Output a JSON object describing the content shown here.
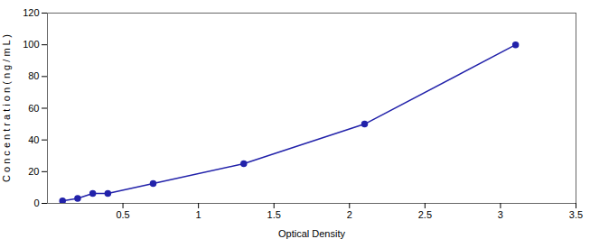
{
  "chart_data": {
    "type": "line",
    "x": [
      0.1,
      0.2,
      0.3,
      0.4,
      0.7,
      1.3,
      2.1,
      3.1
    ],
    "values": [
      1.56,
      3.13,
      6.25,
      6.25,
      12.5,
      25.0,
      50.0,
      100.0
    ],
    "xlabel": "Optical Density",
    "ylabel": "C o n c e n t r a t i o n ( n g / m L )",
    "xlim": [
      0,
      3.5
    ],
    "ylim": [
      0,
      120
    ],
    "xticks": [
      0.5,
      1,
      1.5,
      2,
      2.5,
      3,
      3.5
    ],
    "yticks": [
      0,
      20,
      40,
      60,
      80,
      100,
      120
    ],
    "color": "#2222aa",
    "marker": "circle"
  }
}
